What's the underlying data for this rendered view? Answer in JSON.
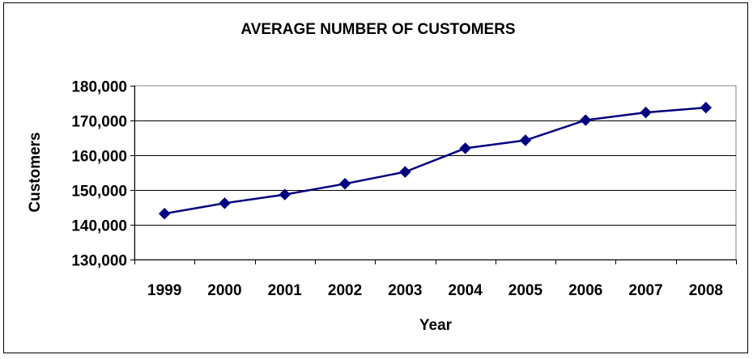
{
  "chart_data": {
    "type": "line",
    "title": "AVERAGE NUMBER OF CUSTOMERS",
    "xlabel": "Year",
    "ylabel": "Customers",
    "categories": [
      "1999",
      "2000",
      "2001",
      "2002",
      "2003",
      "2004",
      "2005",
      "2006",
      "2007",
      "2008"
    ],
    "series": [
      {
        "values": [
          143200,
          146200,
          148700,
          151800,
          155200,
          162000,
          164300,
          170100,
          172300,
          173700
        ],
        "color": "#000080",
        "marker": "diamond"
      }
    ],
    "ylim": [
      130000,
      180000
    ],
    "yticks": [
      130000,
      140000,
      150000,
      160000,
      170000,
      180000
    ],
    "ytick_labels": [
      "130,000",
      "140,000",
      "150,000",
      "160,000",
      "170,000",
      "180,000"
    ],
    "grid": "horizontal",
    "legend": "none"
  }
}
